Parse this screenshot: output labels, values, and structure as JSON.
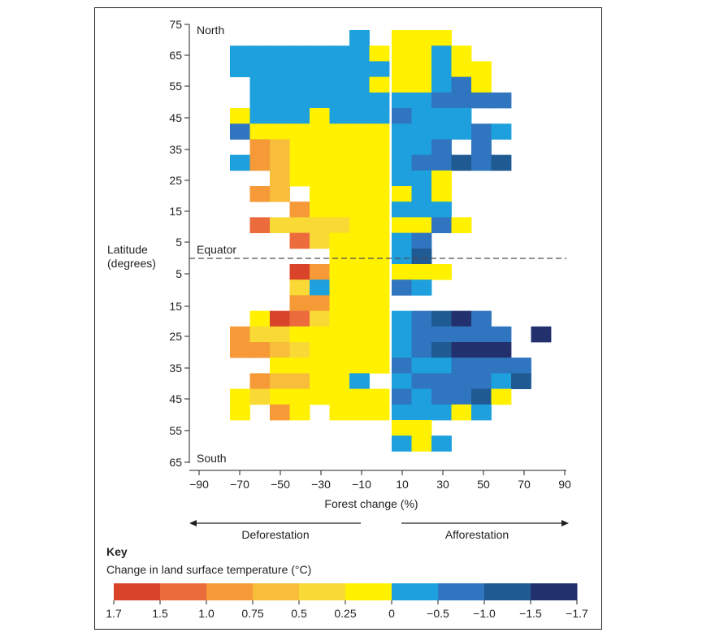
{
  "chart_data": {
    "type": "heatmap",
    "xlabel": "Forest change (%)",
    "ylabel": "Latitude (degrees)",
    "x_tick_labels": [
      "−90",
      "−70",
      "−50",
      "−30",
      "−10",
      "10",
      "30",
      "50",
      "70",
      "90"
    ],
    "x_tick_values": [
      -90,
      -70,
      -50,
      -30,
      -10,
      10,
      30,
      50,
      70,
      90
    ],
    "y_tick_labels": [
      "75",
      "65",
      "55",
      "45",
      "35",
      "25",
      "15",
      "5",
      "5",
      "15",
      "25",
      "35",
      "45",
      "55",
      "65"
    ],
    "y_tick_values": [
      75,
      65,
      55,
      45,
      35,
      25,
      15,
      5,
      -5,
      -15,
      -25,
      -35,
      -45,
      -55,
      -65
    ],
    "xlim": [
      -90,
      90
    ],
    "ylim": [
      -65,
      75
    ],
    "annotations": {
      "north": "North",
      "south": "South",
      "equator": "Equator"
    },
    "arrows": {
      "left": "Deforestation",
      "right": "Afforestation"
    },
    "key": {
      "heading": "Key",
      "subtitle": "Change in land surface temperature (°C)",
      "colors": [
        "#d9432a",
        "#ec6b3d",
        "#f59a36",
        "#f8bd3a",
        "#f9d936",
        "#fff100",
        "#1da0dd",
        "#2f75bf",
        "#1f5a93",
        "#22316e"
      ],
      "labels": [
        "1.7",
        "1.5",
        "1.0",
        "0.75",
        "0.5",
        "0.25",
        "0",
        "−0.5",
        "−1.0",
        "−1.5",
        "−1.7"
      ]
    },
    "cell_size": {
      "forest_change_pct": 10,
      "latitude_deg": 5
    },
    "cells_note": "Each cell: [forest change bin start %, latitude bin top deg, temperature class index into key.colors]",
    "cells": [
      [
        -20,
        75,
        6
      ],
      [
        -80,
        70,
        6
      ],
      [
        -70,
        70,
        6
      ],
      [
        -60,
        70,
        6
      ],
      [
        -50,
        70,
        6
      ],
      [
        -40,
        70,
        6
      ],
      [
        -30,
        70,
        6
      ],
      [
        -20,
        70,
        6
      ],
      [
        -10,
        70,
        5
      ],
      [
        -80,
        65,
        6
      ],
      [
        -70,
        65,
        6
      ],
      [
        -60,
        65,
        6
      ],
      [
        -50,
        65,
        6
      ],
      [
        -40,
        65,
        6
      ],
      [
        -30,
        65,
        6
      ],
      [
        -20,
        65,
        6
      ],
      [
        -10,
        65,
        6
      ],
      [
        -70,
        60,
        6
      ],
      [
        -60,
        60,
        6
      ],
      [
        -50,
        60,
        6
      ],
      [
        -40,
        60,
        6
      ],
      [
        -30,
        60,
        6
      ],
      [
        -20,
        60,
        6
      ],
      [
        -10,
        60,
        5
      ],
      [
        -70,
        55,
        6
      ],
      [
        -60,
        55,
        6
      ],
      [
        -50,
        55,
        6
      ],
      [
        -40,
        55,
        6
      ],
      [
        -30,
        55,
        6
      ],
      [
        -20,
        55,
        6
      ],
      [
        -10,
        55,
        6
      ],
      [
        -80,
        50,
        5
      ],
      [
        -70,
        50,
        6
      ],
      [
        -60,
        50,
        6
      ],
      [
        -50,
        50,
        6
      ],
      [
        -40,
        50,
        5
      ],
      [
        -30,
        50,
        6
      ],
      [
        -20,
        50,
        6
      ],
      [
        -10,
        50,
        6
      ],
      [
        -80,
        45,
        7
      ],
      [
        -70,
        45,
        5
      ],
      [
        -60,
        45,
        5
      ],
      [
        -50,
        45,
        5
      ],
      [
        -40,
        45,
        5
      ],
      [
        -30,
        45,
        5
      ],
      [
        -20,
        45,
        5
      ],
      [
        -10,
        45,
        5
      ],
      [
        -70,
        40,
        2
      ],
      [
        -60,
        40,
        3
      ],
      [
        -50,
        40,
        5
      ],
      [
        -40,
        40,
        5
      ],
      [
        -30,
        40,
        5
      ],
      [
        -20,
        40,
        5
      ],
      [
        -10,
        40,
        5
      ],
      [
        -80,
        35,
        6
      ],
      [
        -70,
        35,
        2
      ],
      [
        -60,
        35,
        3
      ],
      [
        -50,
        35,
        5
      ],
      [
        -40,
        35,
        5
      ],
      [
        -30,
        35,
        5
      ],
      [
        -20,
        35,
        5
      ],
      [
        -10,
        35,
        5
      ],
      [
        -60,
        30,
        3
      ],
      [
        -50,
        30,
        5
      ],
      [
        -40,
        30,
        5
      ],
      [
        -30,
        30,
        5
      ],
      [
        -20,
        30,
        5
      ],
      [
        -10,
        30,
        5
      ],
      [
        -70,
        25,
        2
      ],
      [
        -60,
        25,
        3
      ],
      [
        -40,
        25,
        5
      ],
      [
        -30,
        25,
        5
      ],
      [
        -20,
        25,
        5
      ],
      [
        -10,
        25,
        5
      ],
      [
        -50,
        20,
        2
      ],
      [
        -40,
        20,
        5
      ],
      [
        -30,
        20,
        5
      ],
      [
        -20,
        20,
        5
      ],
      [
        -10,
        20,
        5
      ],
      [
        -70,
        15,
        1
      ],
      [
        -60,
        15,
        4
      ],
      [
        -50,
        15,
        4
      ],
      [
        -40,
        15,
        4
      ],
      [
        -30,
        15,
        4
      ],
      [
        -20,
        15,
        5
      ],
      [
        -10,
        15,
        5
      ],
      [
        -50,
        10,
        1
      ],
      [
        -40,
        10,
        4
      ],
      [
        -30,
        10,
        5
      ],
      [
        -20,
        10,
        5
      ],
      [
        -10,
        10,
        5
      ],
      [
        -30,
        5,
        5
      ],
      [
        -20,
        5,
        5
      ],
      [
        -10,
        5,
        5
      ],
      [
        -50,
        0,
        0
      ],
      [
        -40,
        0,
        2
      ],
      [
        -30,
        0,
        5
      ],
      [
        -20,
        0,
        5
      ],
      [
        -10,
        0,
        5
      ],
      [
        -50,
        -5,
        4
      ],
      [
        -40,
        -5,
        6
      ],
      [
        -30,
        -5,
        5
      ],
      [
        -20,
        -5,
        5
      ],
      [
        -10,
        -5,
        5
      ],
      [
        -50,
        -10,
        2
      ],
      [
        -40,
        -10,
        2
      ],
      [
        -30,
        -10,
        5
      ],
      [
        -20,
        -10,
        5
      ],
      [
        -10,
        -10,
        5
      ],
      [
        -70,
        -15,
        5
      ],
      [
        -60,
        -15,
        0
      ],
      [
        -50,
        -15,
        1
      ],
      [
        -40,
        -15,
        4
      ],
      [
        -30,
        -15,
        5
      ],
      [
        -20,
        -15,
        5
      ],
      [
        -10,
        -15,
        5
      ],
      [
        -80,
        -20,
        2
      ],
      [
        -70,
        -20,
        4
      ],
      [
        -60,
        -20,
        4
      ],
      [
        -50,
        -20,
        5
      ],
      [
        -40,
        -20,
        5
      ],
      [
        -30,
        -20,
        5
      ],
      [
        -20,
        -20,
        5
      ],
      [
        -10,
        -20,
        5
      ],
      [
        -80,
        -25,
        2
      ],
      [
        -70,
        -25,
        2
      ],
      [
        -60,
        -25,
        3
      ],
      [
        -50,
        -25,
        4
      ],
      [
        -40,
        -25,
        5
      ],
      [
        -30,
        -25,
        5
      ],
      [
        -20,
        -25,
        5
      ],
      [
        -10,
        -25,
        5
      ],
      [
        -60,
        -30,
        5
      ],
      [
        -50,
        -30,
        5
      ],
      [
        -40,
        -30,
        5
      ],
      [
        -30,
        -30,
        5
      ],
      [
        -20,
        -30,
        5
      ],
      [
        -10,
        -30,
        5
      ],
      [
        -70,
        -35,
        2
      ],
      [
        -60,
        -35,
        3
      ],
      [
        -50,
        -35,
        3
      ],
      [
        -40,
        -35,
        5
      ],
      [
        -30,
        -35,
        5
      ],
      [
        -20,
        -35,
        6
      ],
      [
        -80,
        -40,
        5
      ],
      [
        -70,
        -40,
        4
      ],
      [
        -60,
        -40,
        5
      ],
      [
        -50,
        -40,
        5
      ],
      [
        -40,
        -40,
        5
      ],
      [
        -30,
        -40,
        5
      ],
      [
        -20,
        -40,
        5
      ],
      [
        -10,
        -40,
        5
      ],
      [
        -80,
        -45,
        5
      ],
      [
        -60,
        -45,
        2
      ],
      [
        -50,
        -45,
        5
      ],
      [
        -30,
        -45,
        5
      ],
      [
        -20,
        -45,
        5
      ],
      [
        -10,
        -45,
        5
      ],
      [
        0,
        75,
        5
      ],
      [
        10,
        75,
        5
      ],
      [
        20,
        75,
        5
      ],
      [
        0,
        70,
        5
      ],
      [
        10,
        70,
        5
      ],
      [
        20,
        70,
        6
      ],
      [
        30,
        70,
        5
      ],
      [
        0,
        65,
        5
      ],
      [
        10,
        65,
        5
      ],
      [
        20,
        65,
        6
      ],
      [
        30,
        65,
        5
      ],
      [
        40,
        65,
        5
      ],
      [
        0,
        60,
        5
      ],
      [
        10,
        60,
        5
      ],
      [
        20,
        60,
        6
      ],
      [
        30,
        60,
        7
      ],
      [
        40,
        60,
        5
      ],
      [
        0,
        55,
        6
      ],
      [
        10,
        55,
        6
      ],
      [
        20,
        55,
        7
      ],
      [
        30,
        55,
        7
      ],
      [
        40,
        55,
        7
      ],
      [
        50,
        55,
        7
      ],
      [
        0,
        50,
        7
      ],
      [
        10,
        50,
        6
      ],
      [
        20,
        50,
        6
      ],
      [
        30,
        50,
        6
      ],
      [
        0,
        45,
        6
      ],
      [
        10,
        45,
        6
      ],
      [
        20,
        45,
        6
      ],
      [
        30,
        45,
        6
      ],
      [
        40,
        45,
        7
      ],
      [
        50,
        45,
        6
      ],
      [
        0,
        40,
        6
      ],
      [
        10,
        40,
        6
      ],
      [
        20,
        40,
        7
      ],
      [
        40,
        40,
        7
      ],
      [
        0,
        35,
        6
      ],
      [
        10,
        35,
        7
      ],
      [
        20,
        35,
        7
      ],
      [
        30,
        35,
        8
      ],
      [
        40,
        35,
        7
      ],
      [
        50,
        35,
        8
      ],
      [
        0,
        30,
        6
      ],
      [
        10,
        30,
        6
      ],
      [
        20,
        30,
        5
      ],
      [
        0,
        25,
        5
      ],
      [
        10,
        25,
        6
      ],
      [
        20,
        25,
        5
      ],
      [
        0,
        20,
        6
      ],
      [
        10,
        20,
        6
      ],
      [
        20,
        20,
        6
      ],
      [
        0,
        15,
        5
      ],
      [
        10,
        15,
        5
      ],
      [
        20,
        15,
        7
      ],
      [
        30,
        15,
        5
      ],
      [
        0,
        10,
        6
      ],
      [
        10,
        10,
        7
      ],
      [
        0,
        5,
        6
      ],
      [
        10,
        5,
        8
      ],
      [
        0,
        0,
        5
      ],
      [
        10,
        0,
        5
      ],
      [
        20,
        0,
        5
      ],
      [
        0,
        -5,
        7
      ],
      [
        10,
        -5,
        6
      ],
      [
        0,
        -15,
        6
      ],
      [
        10,
        -15,
        7
      ],
      [
        20,
        -15,
        8
      ],
      [
        30,
        -15,
        9
      ],
      [
        40,
        -15,
        7
      ],
      [
        0,
        -20,
        6
      ],
      [
        10,
        -20,
        7
      ],
      [
        20,
        -20,
        7
      ],
      [
        30,
        -20,
        7
      ],
      [
        40,
        -20,
        7
      ],
      [
        50,
        -20,
        7
      ],
      [
        70,
        -20,
        9
      ],
      [
        0,
        -25,
        6
      ],
      [
        10,
        -25,
        7
      ],
      [
        20,
        -25,
        8
      ],
      [
        30,
        -25,
        9
      ],
      [
        40,
        -25,
        9
      ],
      [
        50,
        -25,
        9
      ],
      [
        0,
        -30,
        7
      ],
      [
        10,
        -30,
        6
      ],
      [
        20,
        -30,
        6
      ],
      [
        30,
        -30,
        7
      ],
      [
        40,
        -30,
        7
      ],
      [
        50,
        -30,
        7
      ],
      [
        60,
        -30,
        7
      ],
      [
        0,
        -35,
        6
      ],
      [
        10,
        -35,
        7
      ],
      [
        20,
        -35,
        7
      ],
      [
        30,
        -35,
        7
      ],
      [
        40,
        -35,
        7
      ],
      [
        50,
        -35,
        6
      ],
      [
        60,
        -35,
        8
      ],
      [
        0,
        -40,
        7
      ],
      [
        10,
        -40,
        6
      ],
      [
        20,
        -40,
        7
      ],
      [
        30,
        -40,
        7
      ],
      [
        40,
        -40,
        8
      ],
      [
        50,
        -40,
        5
      ],
      [
        0,
        -45,
        6
      ],
      [
        10,
        -45,
        6
      ],
      [
        20,
        -45,
        6
      ],
      [
        30,
        -45,
        5
      ],
      [
        40,
        -45,
        6
      ],
      [
        0,
        -50,
        5
      ],
      [
        10,
        -50,
        5
      ],
      [
        0,
        -55,
        6
      ],
      [
        10,
        -55,
        5
      ],
      [
        20,
        -55,
        6
      ]
    ]
  }
}
